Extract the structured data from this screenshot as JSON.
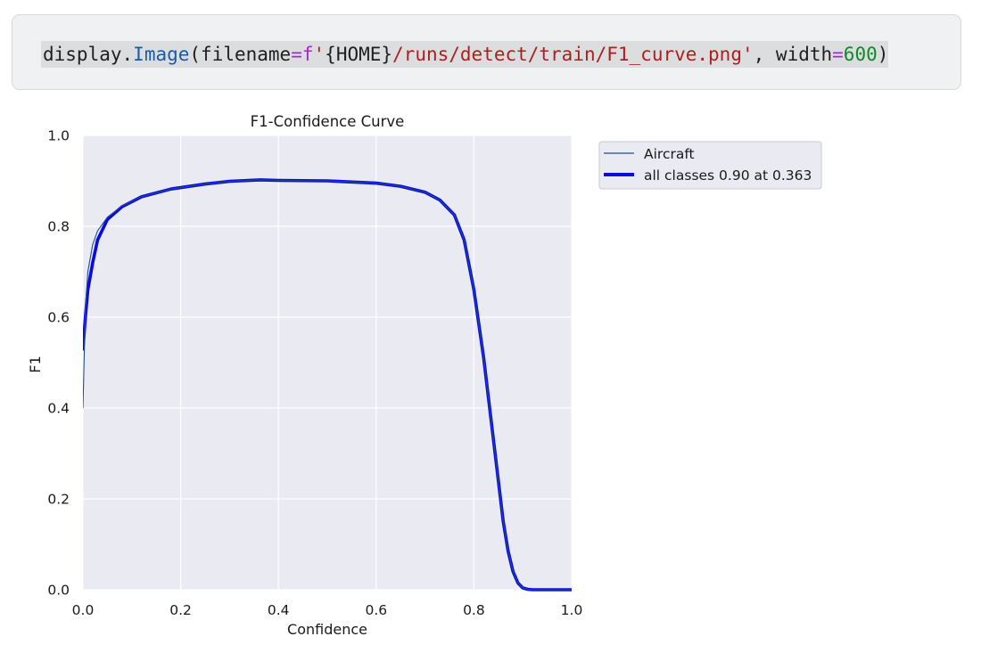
{
  "code_cell": {
    "module": "display",
    "dot": ".",
    "function": "Image",
    "open_paren": "(",
    "arg1_name": "filename",
    "equals1": "=",
    "f_prefix": "f",
    "quote_open": "'",
    "brace_expr": "{HOME}",
    "path": "/runs/detect/train/F1_curve.png",
    "quote_close": "'",
    "comma": ", ",
    "arg2_name": "width",
    "equals2": "=",
    "width_value": "600",
    "close_paren": ")"
  },
  "chart_data": {
    "type": "line",
    "title": "F1-Confidence Curve",
    "xlabel": "Confidence",
    "ylabel": "F1",
    "xlim": [
      0,
      1
    ],
    "ylim": [
      0,
      1
    ],
    "xticks": [
      "0.0",
      "0.2",
      "0.4",
      "0.6",
      "0.8",
      "1.0"
    ],
    "yticks": [
      "0.0",
      "0.2",
      "0.4",
      "0.6",
      "0.8",
      "1.0"
    ],
    "grid": true,
    "legend_position": "outside-right-top",
    "background": "#eaeaf2",
    "series": [
      {
        "name": "Aircraft",
        "color": "#1f4e8c",
        "style": "thin",
        "x": [
          0.0,
          0.005,
          0.01,
          0.02,
          0.03,
          0.05,
          0.08,
          0.12,
          0.18,
          0.25,
          0.3,
          0.363,
          0.4,
          0.5,
          0.6,
          0.65,
          0.7,
          0.73,
          0.76,
          0.78,
          0.8,
          0.82,
          0.84,
          0.85,
          0.86,
          0.87,
          0.88,
          0.89,
          0.9,
          0.91,
          0.92,
          0.95,
          1.0
        ],
        "y": [
          0.4,
          0.62,
          0.7,
          0.76,
          0.79,
          0.82,
          0.845,
          0.865,
          0.882,
          0.893,
          0.899,
          0.902,
          0.901,
          0.9,
          0.895,
          0.888,
          0.875,
          0.858,
          0.825,
          0.77,
          0.66,
          0.51,
          0.33,
          0.24,
          0.15,
          0.085,
          0.04,
          0.015,
          0.004,
          0.001,
          0.0,
          0.0,
          0.0
        ]
      },
      {
        "name": "all classes 0.90 at 0.363",
        "color": "#0a0ae0",
        "style": "thick",
        "x": [
          0.0,
          0.005,
          0.01,
          0.02,
          0.03,
          0.05,
          0.08,
          0.12,
          0.18,
          0.25,
          0.3,
          0.363,
          0.4,
          0.5,
          0.6,
          0.65,
          0.7,
          0.73,
          0.76,
          0.78,
          0.8,
          0.82,
          0.84,
          0.85,
          0.86,
          0.87,
          0.88,
          0.89,
          0.9,
          0.91,
          0.92,
          0.95,
          1.0
        ],
        "y": [
          0.53,
          0.6,
          0.66,
          0.72,
          0.77,
          0.815,
          0.843,
          0.865,
          0.882,
          0.893,
          0.899,
          0.902,
          0.901,
          0.9,
          0.895,
          0.888,
          0.875,
          0.858,
          0.825,
          0.77,
          0.66,
          0.51,
          0.33,
          0.24,
          0.15,
          0.085,
          0.04,
          0.015,
          0.004,
          0.001,
          0.0,
          0.0,
          0.0
        ]
      }
    ]
  }
}
